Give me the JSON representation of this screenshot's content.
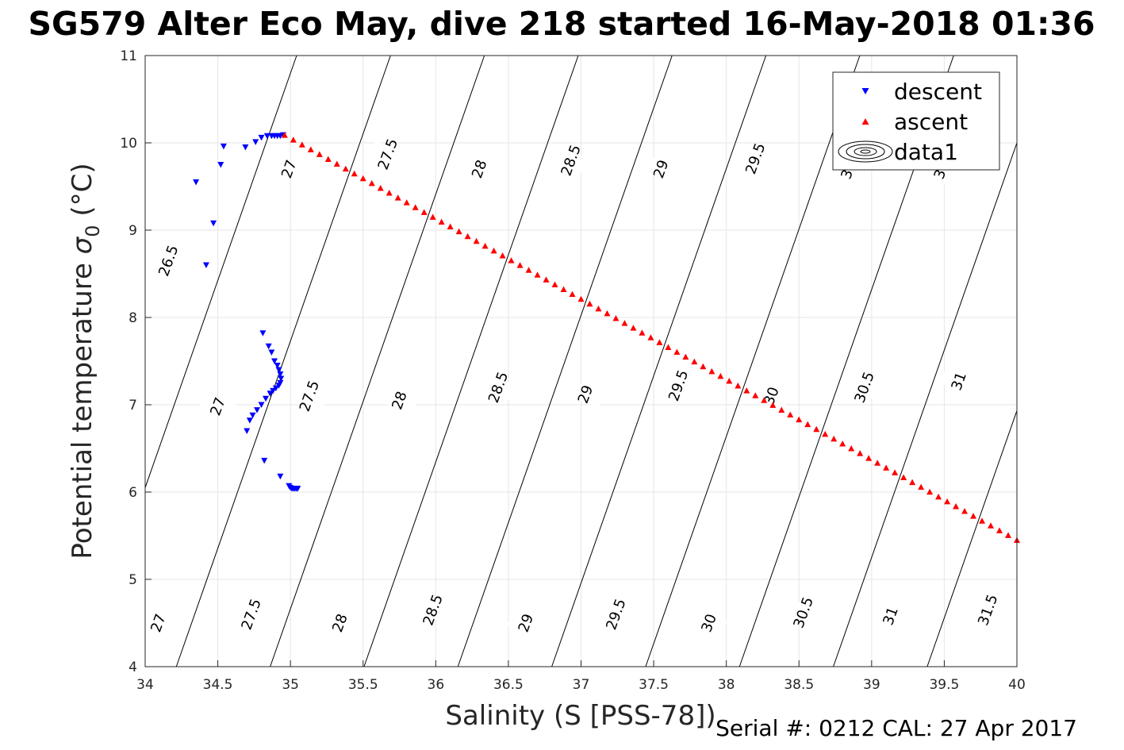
{
  "chart_data": {
    "type": "scatter",
    "title": "SG579 Alter Eco May, dive 218 started 16-May-2018 01:36",
    "xlabel": "Salinity (S [PSS-78])",
    "ylabel_main": "Potential temperature ",
    "ylabel_sigma": "σ",
    "ylabel_sub": "0",
    "ylabel_unit": " (°C)",
    "xlim": [
      34,
      40
    ],
    "ylim": [
      4,
      11
    ],
    "x_ticks": [
      "34",
      "34.5",
      "35",
      "35.5",
      "36",
      "36.5",
      "37",
      "37.5",
      "38",
      "38.5",
      "39",
      "39.5",
      "40"
    ],
    "y_ticks": [
      "4",
      "5",
      "6",
      "7",
      "8",
      "9",
      "10",
      "11"
    ],
    "grid": true,
    "legend_position": "top-right",
    "legend": [
      "descent",
      "ascent",
      "data1"
    ],
    "series": [
      {
        "name": "descent",
        "marker": "triangle-down",
        "color": "#0000ff",
        "points": [
          [
            34.35,
            9.55
          ],
          [
            34.42,
            8.6
          ],
          [
            34.47,
            9.08
          ],
          [
            34.52,
            9.75
          ],
          [
            34.54,
            9.96
          ],
          [
            34.69,
            9.95
          ],
          [
            34.76,
            10.01
          ],
          [
            34.8,
            10.06
          ],
          [
            34.84,
            10.08
          ],
          [
            34.87,
            10.08
          ],
          [
            34.89,
            10.08
          ],
          [
            34.91,
            10.08
          ],
          [
            34.93,
            10.08
          ],
          [
            34.95,
            10.09
          ],
          [
            34.81,
            7.82
          ],
          [
            34.85,
            7.67
          ],
          [
            34.87,
            7.6
          ],
          [
            34.89,
            7.5
          ],
          [
            34.91,
            7.45
          ],
          [
            34.92,
            7.4
          ],
          [
            34.93,
            7.35
          ],
          [
            34.935,
            7.3
          ],
          [
            34.93,
            7.25
          ],
          [
            34.92,
            7.22
          ],
          [
            34.9,
            7.19
          ],
          [
            34.88,
            7.16
          ],
          [
            34.86,
            7.13
          ],
          [
            34.83,
            7.07
          ],
          [
            34.8,
            7.0
          ],
          [
            34.77,
            6.94
          ],
          [
            34.74,
            6.88
          ],
          [
            34.72,
            6.82
          ],
          [
            34.7,
            6.7
          ],
          [
            34.82,
            6.36
          ],
          [
            34.93,
            6.18
          ],
          [
            34.99,
            6.07
          ],
          [
            35.0,
            6.05
          ],
          [
            35.01,
            6.04
          ],
          [
            35.02,
            6.04
          ],
          [
            35.03,
            6.04
          ],
          [
            35.04,
            6.04
          ],
          [
            35.05,
            6.04
          ]
        ]
      },
      {
        "name": "ascent",
        "marker": "triangle-up",
        "color": "#ff0000",
        "start": [
          34.96,
          10.09
        ],
        "end": [
          40.0,
          5.45
        ],
        "count": 85
      }
    ],
    "isopycnals_sigma0": [
      26.5,
      27,
      27.5,
      28,
      28.5,
      29,
      29.5,
      30,
      30.5,
      31,
      31.5
    ],
    "contour_labels": [
      {
        "text": "26.5",
        "s": 34.16,
        "t": 8.65
      },
      {
        "text": "27",
        "s": 34.5,
        "t": 6.98
      },
      {
        "text": "27",
        "s": 34.99,
        "t": 9.7
      },
      {
        "text": "27",
        "s": 34.09,
        "t": 4.5
      },
      {
        "text": "27.5",
        "s": 35.13,
        "t": 7.1
      },
      {
        "text": "27.5",
        "s": 35.67,
        "t": 9.87
      },
      {
        "text": "27.5",
        "s": 34.73,
        "t": 4.6
      },
      {
        "text": "28",
        "s": 35.75,
        "t": 7.05
      },
      {
        "text": "28",
        "s": 36.3,
        "t": 9.7
      },
      {
        "text": "28",
        "s": 35.34,
        "t": 4.5
      },
      {
        "text": "28.5",
        "s": 36.43,
        "t": 7.2
      },
      {
        "text": "28.5",
        "s": 36.93,
        "t": 9.8
      },
      {
        "text": "28.5",
        "s": 35.98,
        "t": 4.65
      },
      {
        "text": "29",
        "s": 37.03,
        "t": 7.12
      },
      {
        "text": "29",
        "s": 37.55,
        "t": 9.7
      },
      {
        "text": "29",
        "s": 36.62,
        "t": 4.5
      },
      {
        "text": "29.5",
        "s": 37.67,
        "t": 7.22
      },
      {
        "text": "29.5",
        "s": 38.2,
        "t": 9.82
      },
      {
        "text": "29.5",
        "s": 37.24,
        "t": 4.6
      },
      {
        "text": "30",
        "s": 38.31,
        "t": 7.1
      },
      {
        "text": "30",
        "s": 37.88,
        "t": 4.5
      },
      {
        "text": "30.5",
        "s": 38.95,
        "t": 7.2
      },
      {
        "text": "30.5",
        "s": 38.53,
        "t": 4.62
      },
      {
        "text": "31",
        "s": 39.6,
        "t": 7.27
      },
      {
        "text": "31",
        "s": 39.13,
        "t": 4.58
      },
      {
        "text": "31.5",
        "s": 39.8,
        "t": 4.65
      },
      {
        "text": "3",
        "s": 38.83,
        "t": 9.64
      },
      {
        "text": "3",
        "s": 39.47,
        "t": 9.64
      }
    ]
  },
  "footer": {
    "serial_text": "Serial #: 0212  CAL: 27 Apr 2017"
  }
}
